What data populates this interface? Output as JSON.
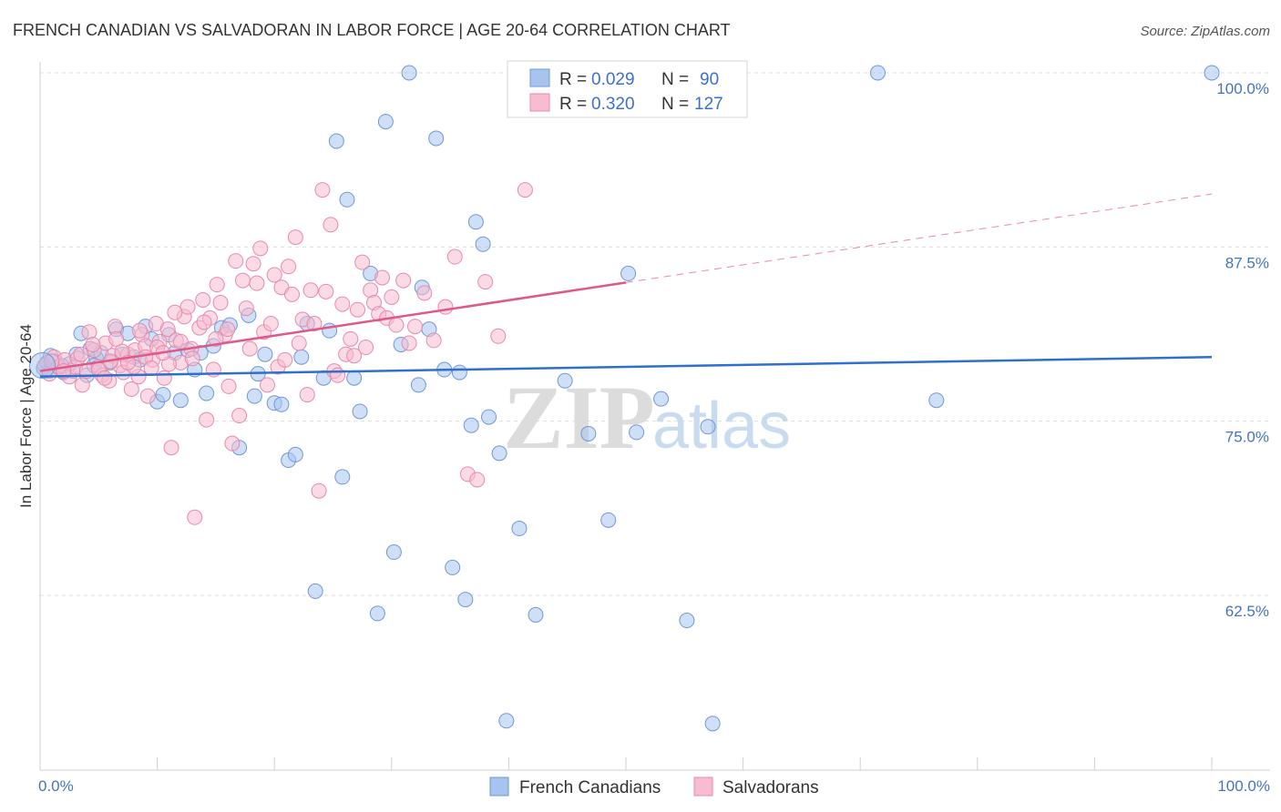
{
  "chart_data": {
    "type": "scatter",
    "title": "FRENCH CANADIAN VS SALVADORAN IN LABOR FORCE | AGE 20-64 CORRELATION CHART",
    "source": "Source: ZipAtlas.com",
    "ylabel": "In Labor Force | Age 20-64",
    "xlabel": "",
    "xlim": [
      0,
      100
    ],
    "ylim": [
      50,
      103
    ],
    "y_ticks": [
      {
        "value": 100.0,
        "label": "100.0%"
      },
      {
        "value": 87.5,
        "label": "87.5%"
      },
      {
        "value": 75.0,
        "label": "75.0%"
      },
      {
        "value": 62.5,
        "label": "62.5%"
      }
    ],
    "x_tick_labels": {
      "left": "0.0%",
      "right": "100.0%"
    },
    "watermark": {
      "zip": "ZIP",
      "atlas": "atlas"
    },
    "legend": {
      "r_label": "R =",
      "n_label": "N =",
      "entries": [
        {
          "series": "French Canadians",
          "r": "0.029",
          "n": "90"
        },
        {
          "series": "Salvadorans",
          "r": "0.320",
          "n": "127"
        }
      ]
    },
    "series": [
      {
        "name": "French Canadians",
        "fill": "#a8c4ee",
        "stroke": "#6f98d8",
        "line_color": "#2f6fce",
        "trend": {
          "x0": 0,
          "y0": 78.2,
          "x1": 100,
          "y1": 79.6,
          "dashed_from": null
        },
        "points": [
          [
            0.3,
            78.8
          ],
          [
            0.6,
            79.2
          ],
          [
            0.8,
            78.6
          ],
          [
            1.2,
            79.3
          ],
          [
            1.5,
            78.9
          ],
          [
            2.0,
            78.5
          ],
          [
            2.5,
            79.1
          ],
          [
            3.1,
            79.8
          ],
          [
            3.5,
            81.3
          ],
          [
            4.0,
            78.3
          ],
          [
            4.3,
            80.2
          ],
          [
            4.8,
            79.5
          ],
          [
            5.2,
            79.9
          ],
          [
            6.0,
            79.2
          ],
          [
            6.5,
            81.6
          ],
          [
            7.0,
            79.8
          ],
          [
            7.5,
            81.3
          ],
          [
            8.0,
            79.6
          ],
          [
            8.5,
            79.4
          ],
          [
            9.0,
            81.8
          ],
          [
            9.5,
            80.9
          ],
          [
            10.0,
            76.4
          ],
          [
            10.5,
            76.9
          ],
          [
            11.0,
            81.2
          ],
          [
            11.5,
            79.9
          ],
          [
            12.0,
            76.5
          ],
          [
            12.6,
            80.1
          ],
          [
            13.2,
            78.7
          ],
          [
            13.7,
            79.9
          ],
          [
            14.2,
            77.0
          ],
          [
            14.8,
            80.4
          ],
          [
            15.5,
            81.7
          ],
          [
            16.2,
            81.9
          ],
          [
            17.0,
            73.1
          ],
          [
            17.8,
            82.6
          ],
          [
            18.3,
            76.8
          ],
          [
            18.6,
            78.4
          ],
          [
            19.2,
            79.8
          ],
          [
            20.0,
            76.3
          ],
          [
            20.6,
            76.2
          ],
          [
            21.2,
            72.2
          ],
          [
            21.8,
            72.6
          ],
          [
            22.3,
            79.6
          ],
          [
            22.8,
            82.0
          ],
          [
            23.5,
            62.8
          ],
          [
            24.2,
            78.1
          ],
          [
            24.7,
            81.5
          ],
          [
            25.3,
            95.1
          ],
          [
            25.8,
            71.0
          ],
          [
            26.2,
            90.9
          ],
          [
            26.8,
            78.1
          ],
          [
            27.3,
            75.7
          ],
          [
            28.2,
            85.6
          ],
          [
            28.8,
            61.2
          ],
          [
            29.5,
            96.5
          ],
          [
            30.2,
            65.6
          ],
          [
            30.8,
            80.5
          ],
          [
            31.5,
            100.0
          ],
          [
            32.3,
            77.6
          ],
          [
            32.6,
            84.6
          ],
          [
            33.2,
            81.6
          ],
          [
            33.8,
            95.3
          ],
          [
            34.5,
            78.7
          ],
          [
            35.2,
            64.5
          ],
          [
            35.8,
            78.5
          ],
          [
            36.3,
            62.2
          ],
          [
            36.8,
            74.7
          ],
          [
            37.2,
            89.3
          ],
          [
            37.8,
            87.7
          ],
          [
            38.3,
            75.3
          ],
          [
            39.2,
            72.7
          ],
          [
            39.8,
            53.5
          ],
          [
            40.9,
            67.3
          ],
          [
            42.3,
            61.1
          ],
          [
            44.8,
            77.9
          ],
          [
            46.8,
            74.1
          ],
          [
            48.5,
            67.9
          ],
          [
            50.2,
            85.6
          ],
          [
            50.9,
            74.2
          ],
          [
            53.0,
            76.6
          ],
          [
            55.2,
            60.7
          ],
          [
            57.0,
            74.6
          ],
          [
            57.4,
            53.3
          ],
          [
            71.5,
            100.0
          ],
          [
            76.5,
            76.5
          ],
          [
            100.0,
            100.0
          ],
          [
            0.9,
            79.7
          ],
          [
            1.8,
            79.0
          ],
          [
            2.8,
            78.6
          ],
          [
            4.6,
            79.0
          ]
        ]
      },
      {
        "name": "Salvadorans",
        "fill": "#f6bcd0",
        "stroke": "#e88aaa",
        "line_color": "#e0588a",
        "trend": {
          "x0": 0,
          "y0": 78.6,
          "x1": 100,
          "y1": 91.3,
          "dashed_from": 50.0
        },
        "points": [
          [
            0.4,
            79.0
          ],
          [
            0.8,
            78.4
          ],
          [
            1.2,
            79.6
          ],
          [
            1.6,
            78.9
          ],
          [
            2.1,
            79.4
          ],
          [
            2.5,
            78.2
          ],
          [
            3.0,
            78.9
          ],
          [
            3.2,
            79.5
          ],
          [
            3.6,
            77.6
          ],
          [
            4.0,
            78.6
          ],
          [
            4.2,
            81.4
          ],
          [
            4.6,
            80.1
          ],
          [
            5.0,
            78.9
          ],
          [
            5.3,
            78.3
          ],
          [
            5.6,
            80.6
          ],
          [
            5.9,
            77.9
          ],
          [
            6.2,
            79.7
          ],
          [
            6.4,
            81.8
          ],
          [
            6.8,
            79.0
          ],
          [
            7.1,
            78.5
          ],
          [
            7.5,
            79.8
          ],
          [
            7.8,
            77.3
          ],
          [
            8.1,
            80.1
          ],
          [
            8.4,
            78.2
          ],
          [
            8.7,
            81.2
          ],
          [
            9.0,
            80.4
          ],
          [
            9.2,
            76.8
          ],
          [
            9.6,
            79.4
          ],
          [
            9.9,
            82.0
          ],
          [
            10.2,
            80.7
          ],
          [
            10.6,
            78.1
          ],
          [
            10.9,
            81.6
          ],
          [
            11.2,
            73.1
          ],
          [
            11.6,
            80.8
          ],
          [
            12.0,
            79.2
          ],
          [
            12.3,
            82.5
          ],
          [
            12.6,
            83.2
          ],
          [
            12.9,
            80.2
          ],
          [
            13.2,
            68.1
          ],
          [
            13.6,
            81.7
          ],
          [
            13.9,
            83.7
          ],
          [
            14.2,
            75.1
          ],
          [
            14.5,
            82.4
          ],
          [
            14.8,
            78.7
          ],
          [
            15.1,
            84.8
          ],
          [
            15.4,
            83.5
          ],
          [
            15.8,
            81.2
          ],
          [
            16.1,
            77.5
          ],
          [
            16.4,
            73.4
          ],
          [
            16.7,
            86.5
          ],
          [
            17.0,
            75.4
          ],
          [
            17.3,
            85.1
          ],
          [
            17.6,
            83.1
          ],
          [
            17.9,
            80.2
          ],
          [
            18.2,
            86.3
          ],
          [
            18.5,
            84.9
          ],
          [
            18.8,
            87.4
          ],
          [
            19.1,
            81.4
          ],
          [
            19.4,
            77.6
          ],
          [
            19.7,
            82.0
          ],
          [
            20.0,
            85.5
          ],
          [
            20.3,
            78.9
          ],
          [
            20.6,
            84.6
          ],
          [
            20.9,
            79.4
          ],
          [
            21.2,
            86.1
          ],
          [
            21.5,
            84.1
          ],
          [
            21.8,
            88.2
          ],
          [
            22.1,
            80.6
          ],
          [
            22.4,
            82.3
          ],
          [
            22.8,
            76.9
          ],
          [
            23.1,
            84.4
          ],
          [
            23.4,
            82.0
          ],
          [
            23.8,
            70.0
          ],
          [
            24.1,
            91.6
          ],
          [
            24.4,
            84.3
          ],
          [
            24.8,
            89.1
          ],
          [
            25.1,
            78.6
          ],
          [
            25.4,
            78.3
          ],
          [
            25.8,
            83.4
          ],
          [
            26.1,
            79.8
          ],
          [
            26.5,
            80.9
          ],
          [
            26.8,
            79.7
          ],
          [
            27.1,
            83.0
          ],
          [
            27.5,
            86.4
          ],
          [
            27.8,
            80.3
          ],
          [
            28.2,
            84.4
          ],
          [
            28.5,
            83.5
          ],
          [
            28.9,
            82.7
          ],
          [
            29.2,
            85.3
          ],
          [
            29.6,
            82.4
          ],
          [
            30.0,
            83.9
          ],
          [
            30.4,
            81.9
          ],
          [
            31.0,
            85.1
          ],
          [
            31.5,
            80.6
          ],
          [
            32.0,
            81.8
          ],
          [
            32.8,
            84.2
          ],
          [
            33.6,
            80.8
          ],
          [
            34.6,
            83.2
          ],
          [
            35.4,
            86.8
          ],
          [
            36.5,
            71.2
          ],
          [
            37.3,
            70.8
          ],
          [
            38.0,
            85.0
          ],
          [
            39.1,
            81.1
          ],
          [
            41.4,
            91.6
          ],
          [
            5.0,
            78.7
          ],
          [
            6.0,
            79.3
          ],
          [
            7.0,
            80.0
          ],
          [
            8.0,
            78.9
          ],
          [
            9.0,
            79.6
          ],
          [
            10.0,
            80.3
          ],
          [
            11.0,
            79.1
          ],
          [
            12.0,
            80.7
          ],
          [
            13.0,
            79.5
          ],
          [
            14.0,
            82.1
          ],
          [
            15.0,
            80.9
          ],
          [
            16.0,
            81.6
          ],
          [
            3.5,
            79.8
          ],
          [
            2.0,
            78.6
          ],
          [
            1.0,
            79.3
          ],
          [
            4.5,
            80.5
          ],
          [
            5.5,
            78.1
          ],
          [
            6.5,
            80.9
          ],
          [
            7.5,
            79.2
          ],
          [
            8.5,
            81.5
          ],
          [
            9.5,
            78.8
          ],
          [
            10.5,
            79.9
          ],
          [
            11.5,
            82.8
          ]
        ]
      }
    ],
    "bubble_points": [
      {
        "series": "French Canadians",
        "x": 0.2,
        "y": 79.0
      }
    ]
  }
}
